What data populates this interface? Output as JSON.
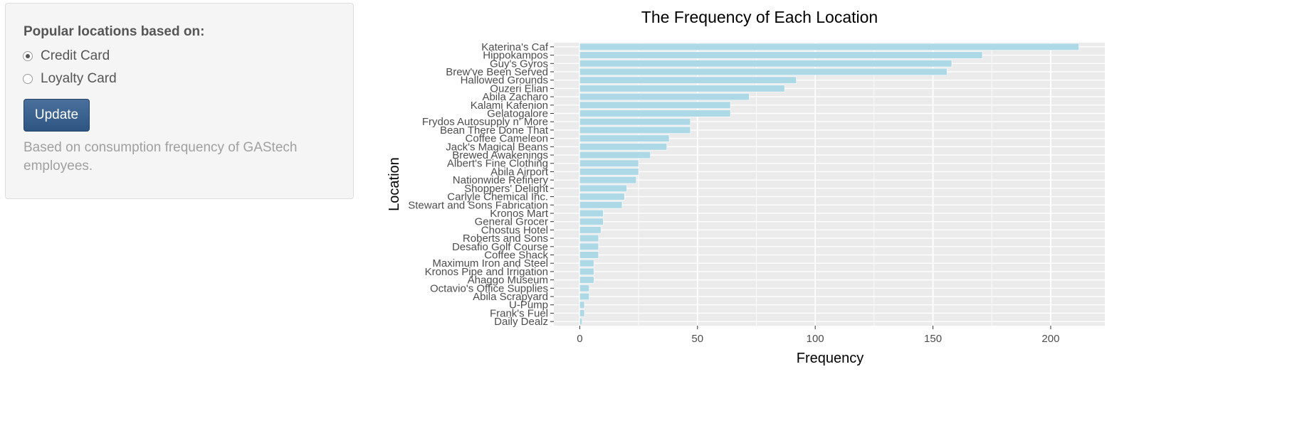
{
  "sidebar": {
    "heading": "Popular locations based on:",
    "options": [
      {
        "label": "Credit Card",
        "selected": true
      },
      {
        "label": "Loyalty Card",
        "selected": false
      }
    ],
    "update_label": "Update",
    "help_text": "Based on consumption frequency of GAStech employees."
  },
  "chart_data": {
    "type": "bar",
    "orientation": "horizontal",
    "title": "The Frequency of Each Location",
    "xlabel": "Frequency",
    "ylabel": "Location",
    "xlim": [
      -11,
      223
    ],
    "xticks": [
      0,
      50,
      100,
      150,
      200
    ],
    "grid": true,
    "bar_color": "#add8e6",
    "panel_color": "#ebebeb",
    "categories": [
      "Katerina's Caf",
      "Hippokampos",
      "Guy's Gyros",
      "Brew've Been Served",
      "Hallowed Grounds",
      "Ouzeri Elian",
      "Abila Zacharo",
      "Kalami Kafenion",
      "Gelatogalore",
      "Frydos Autosupply n' More",
      "Bean There Done That",
      "Coffee Cameleon",
      "Jack's Magical Beans",
      "Brewed Awakenings",
      "Albert's Fine Clothing",
      "Abila Airport",
      "Nationwide Refinery",
      "Shoppers' Delight",
      "Carlyle Chemical Inc.",
      "Stewart and Sons Fabrication",
      "Kronos Mart",
      "General Grocer",
      "Chostus Hotel",
      "Roberts and Sons",
      "Desafio Golf Course",
      "Coffee Shack",
      "Maximum Iron and Steel",
      "Kronos Pipe and Irrigation",
      "Ahaggo Museum",
      "Octavio's Office Supplies",
      "Abila Scrapyard",
      "U-Pump",
      "Frank's Fuel",
      "Daily Dealz"
    ],
    "values": [
      212,
      171,
      158,
      156,
      92,
      87,
      72,
      64,
      64,
      47,
      47,
      38,
      37,
      30,
      25,
      25,
      24,
      20,
      19,
      18,
      10,
      10,
      9,
      8,
      8,
      8,
      6,
      6,
      6,
      4,
      4,
      2,
      2,
      1
    ]
  }
}
